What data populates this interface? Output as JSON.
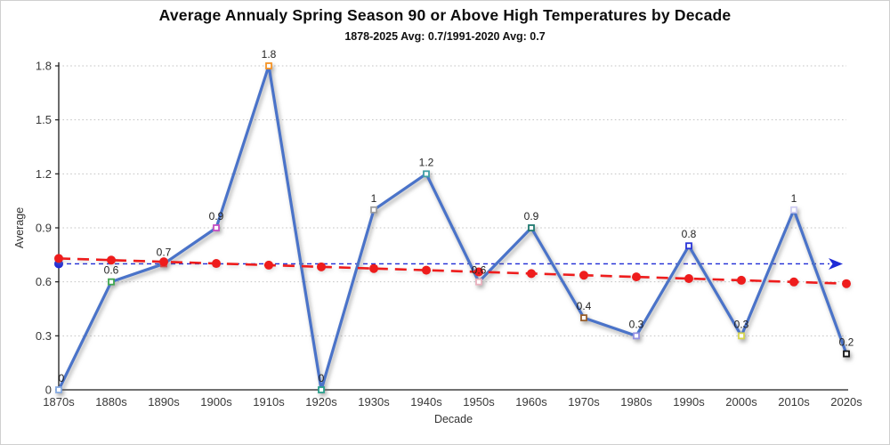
{
  "header": {
    "title": "Average Annualy Spring Season 90 or Above High Temperatures by Decade",
    "subtitle": "1878-2025 Avg: 0.7/1991-2020 Avg: 0.7"
  },
  "colors": {
    "series_line": "#4a73c9",
    "trend_line": "#ee1c1c",
    "average_line": "#1f2bd6",
    "gridline": "#c4c4c4",
    "axis": "#1a1a1a"
  },
  "chart_data": {
    "type": "line",
    "title": "Average Annualy Spring Season 90 or Above High Temperatures by Decade",
    "subtitle": "1878-2025 Avg: 0.7/1991-2020 Avg: 0.7",
    "xlabel": "Decade",
    "ylabel": "Average",
    "ylim": [
      0,
      1.8
    ],
    "yticks": [
      0,
      0.3,
      0.6,
      0.9,
      1.2,
      1.5,
      1.8
    ],
    "ytick_labels": [
      "0",
      "0.3",
      "0.6",
      "0.9",
      "1.2",
      "1.5",
      "1.8"
    ],
    "grid": "horizontal-dotted",
    "legend_position": "none",
    "categories": [
      "1870s",
      "1880s",
      "1890s",
      "1900s",
      "1910s",
      "1920s",
      "1930s",
      "1940s",
      "1950s",
      "1960s",
      "1970s",
      "1980s",
      "1990s",
      "2000s",
      "2010s",
      "2020s"
    ],
    "series": [
      {
        "name": "decade-average",
        "type": "line",
        "color": "#4a73c9",
        "values": [
          0,
          0.6,
          0.7,
          0.9,
          1.8,
          0,
          1,
          1.2,
          0.6,
          0.9,
          0.4,
          0.3,
          0.8,
          0.3,
          1,
          0.2
        ],
        "point_labels": [
          "0",
          "0.6",
          "0.7",
          "0.9",
          "1.8",
          "0",
          "1",
          "1.2",
          "0.6",
          "0.9",
          "0.4",
          "0.3",
          "0.8",
          "0.3",
          "1",
          "0.2"
        ],
        "marker_colors": [
          "#85a9e0",
          "#3fa84f",
          "#e03a3a",
          "#c44ec4",
          "#f59426",
          "#29a08d",
          "#9e9e9e",
          "#3f9ea6",
          "#eab0bd",
          "#1f7a70",
          "#99602e",
          "#9390e2",
          "#2a35d8",
          "#d6d64e",
          "#cfcdf2",
          "#141414"
        ]
      },
      {
        "name": "linear-trend",
        "type": "trend",
        "color": "#ee1c1c",
        "start_value": 0.73,
        "end_value": 0.59,
        "marker": "dot-per-category"
      },
      {
        "name": "overall-average",
        "type": "hline-arrow",
        "color": "#1f2bd6",
        "value": 0.7
      }
    ]
  }
}
